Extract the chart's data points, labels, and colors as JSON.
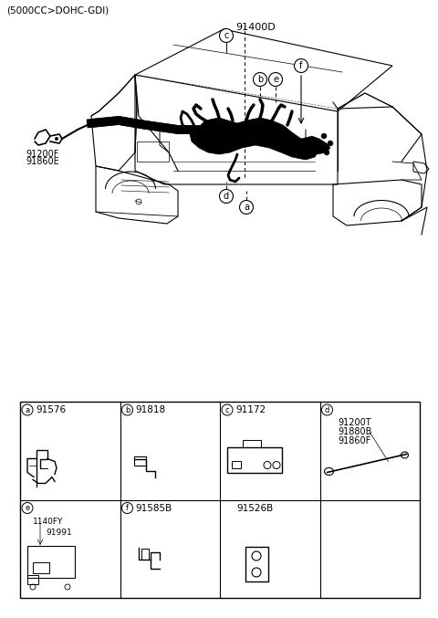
{
  "title_sub": "(5000CC>DOHC-GDI)",
  "main_label": "91400D",
  "left_labels_line1": "91200F",
  "left_labels_line2": "91860E",
  "bg_color": "#ffffff",
  "table": {
    "cells": [
      {
        "row": 0,
        "col": 0,
        "circle": "a",
        "part": "91576"
      },
      {
        "row": 0,
        "col": 1,
        "circle": "b",
        "part": "91818"
      },
      {
        "row": 0,
        "col": 2,
        "circle": "c",
        "part": "91172"
      },
      {
        "row": 0,
        "col": 3,
        "circle": "d",
        "parts": [
          "91200T",
          "91880B",
          "91860F"
        ]
      },
      {
        "row": 1,
        "col": 0,
        "circle": "e",
        "parts": [
          "1140FY",
          "91991"
        ]
      },
      {
        "row": 1,
        "col": 1,
        "circle": "f",
        "part": "91585B"
      },
      {
        "row": 1,
        "col": 2,
        "circle": "",
        "part": "91526B"
      },
      {
        "row": 1,
        "col": 3,
        "circle": "",
        "part": ""
      }
    ]
  }
}
